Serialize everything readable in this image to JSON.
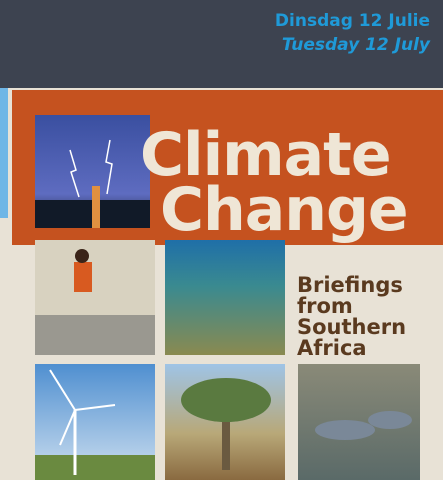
{
  "header": {
    "date_af": "Dinsdag 12 Julie",
    "date_en": "Tuesday 12 July"
  },
  "title": {
    "line1": "Climate",
    "line2": "Change"
  },
  "subtitle": [
    "Briefings",
    "from",
    "Southern",
    "Africa"
  ]
}
